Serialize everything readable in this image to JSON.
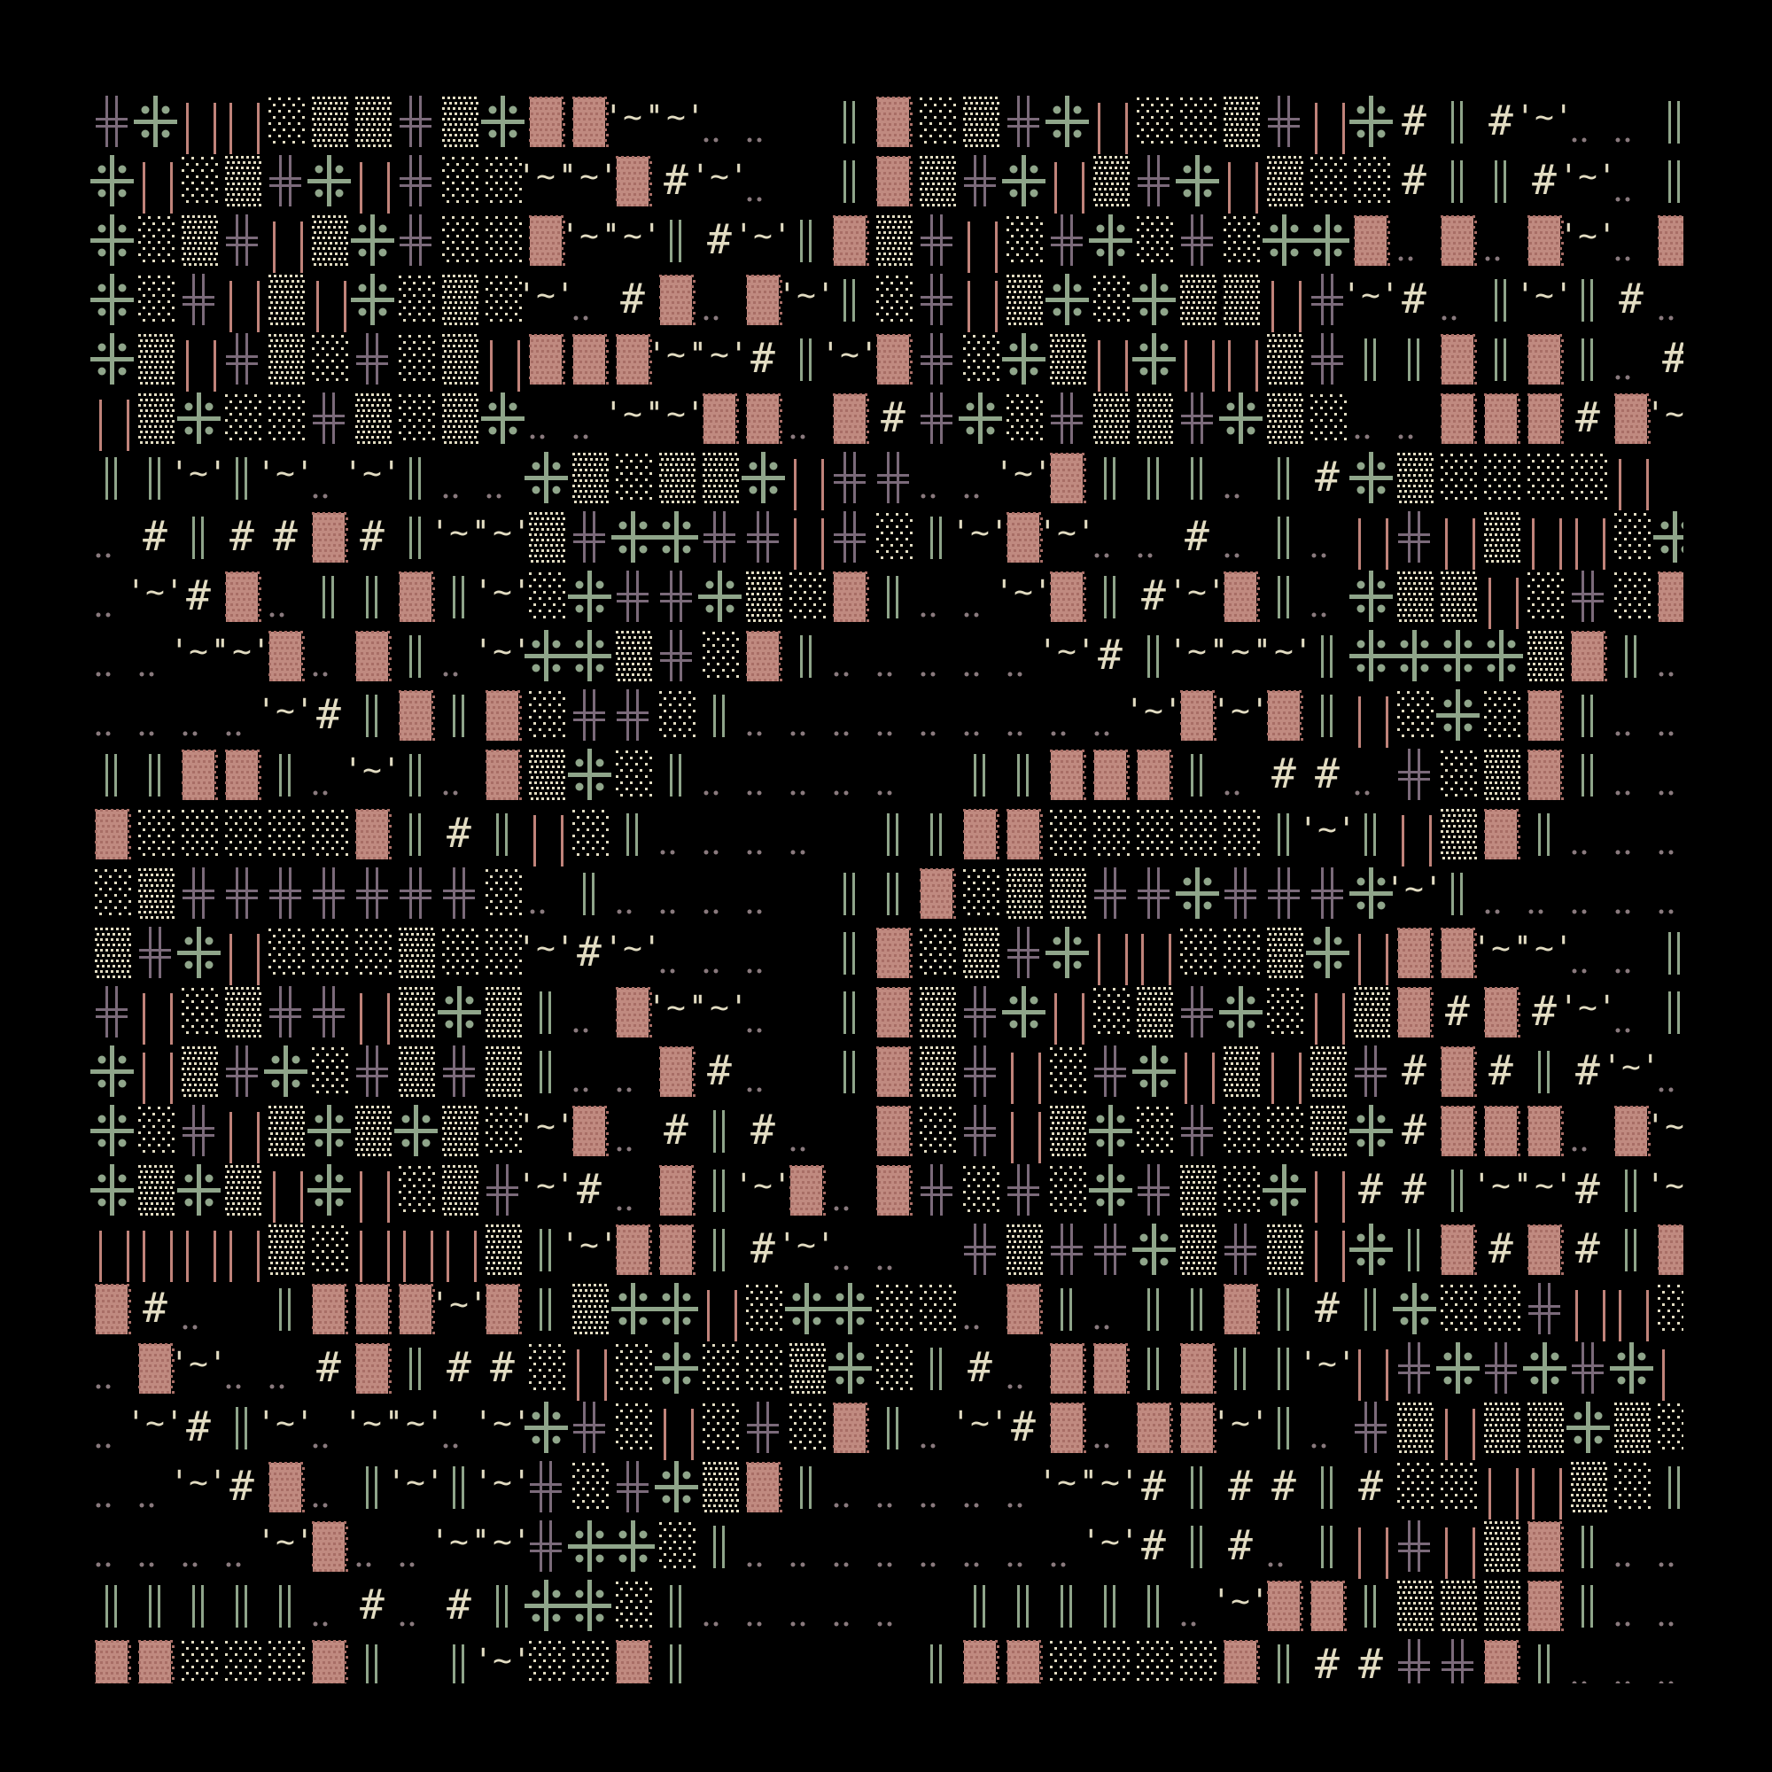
{
  "colors": {
    "background": "#000000",
    "purple_cross": "#7b6a7a",
    "green_cross": "#8fa58a",
    "pink_bars": "#c0837a",
    "pink_block": "#c08a80",
    "cream": "#e2dcc2",
    "dim_dots": "#8a7a7e"
  },
  "glyph_legend": {
    "╬": "double-cross-icon",
    "✣": "dotted-cross-icon",
    "‖": "pink-bars-icon",
    "║": "green-double-bar-icon",
    "░": "sparse-dots-icon",
    "▒": "dense-dots-icon",
    "▓": "pink-block-icon",
    "#": "hash-glyph",
    "~": "tilde-quote-glyph",
    ".": "double-dot-glyph"
  },
  "rows": [
    "╬✣‖‖░▒▒╬▒✣▓▓~~.. ║▓░▒╬✣‖░░▒╬‖✣#║#~..║▓",
    "✣‖░▒╬✣‖╬░░~~▓#~. ║▓▒╬✣‖▒╬✣‖▒░░#║║#~.║▓",
    "✣░▒╬‖▒✣╬░░▓~~║#~║▓▒╬‖░╬✣░╬░✣✣▓.▓.▓~.▓",
    "✣░╬‖▒‖✣░▒░~.#▓.▓~║░╬‖▒✣░✣▒▒‖╬~#.║~║#.",
    "✣▒‖╬▒░╬░▒‖▓▓▓~~#║~▓╬░✣▒‖✣‖‖▒╬║║▓║▓║.#",
    "‖▒✣░░╬▒░▒✣..~~▓▓.▓#╬✣░╬▒▒╬✣▒░..▓▓▓#▓~",
    "║║~║~.~║..✣▒░▒▒✣‖╬╬..~▓║║║.║#✣▒░░░░‖ ",
    ".#║##▓#║~~▒╬✣✣╬╬‖╬░║~▓~..#.║.‖╬‖▒‖‖░✣",
    ".~#▓.║║▓║~░✣╬╬✣▒░▓║..~▓║#~▓║.✣▒▒‖░╬░▓",
    "..~~▓.▓║.~✣✣▒╬░▓║.....~#║~~~║✣✣✣✣▒▓║.",
    "....~#║▓║▓░╬╬░║.........~▓~▓║‖░✣░▓║..",
    "║║▓▓║.~║.▓▒✣░║..... ║║▓▓▓║.##.╬░▒▓║..",
    "▓░░░░░▓║#║‖░║.... ║║▓▓░░░░░║~║‖▒▓║...",
    "░▒╬╬╬╬╬╬╬░.║.... ║║▓░▒▒╬╬✣╬╬╬✣~║..... ",
    "▒╬✣‖░░░▒░░~#~... ║▓░▒╬✣‖‖░░▒✣‖▓▓~~..║▓",
    "╬‖░▒╬╬‖▒✣▒║.▓~~. ║▓▒╬✣‖░▒╬✣░‖▒▓#▓#~.║",
    "✣‖▒╬✣░╬▒╬▒║..▓#. ║▓▒╬‖░╬✣‖▒‖▒╬#▓#║#~.▓",
    "✣░╬‖▒✣▒✣▒░~▓.#║#. ▓░╬‖▒✣░╬░░▒✣#▓▓▓.▓~",
    "✣▒✣▒‖✣‖░▒╬~#.▓║~▓.▓╬░╬░✣╬▒░✣‖##║~~#║~",
    "‖‖‖‖▒░‖‖‖▒║~▓▓║#~.. ╬▒╬╬✣▒╬▒‖✣║▓#▓#║▓",
    "▓#. ║▓▓▓~▓║▒✣✣‖░✣✣░░.▓║.║║▓║#║✣░░╬‖‖░",
    ".▓~..#▓║##░‖░✣░░▒✣░║#.▓▓║▓║║~‖╬✣╬✣╬✣‖",
    ".~#║~.~~.~✣╬░‖░╬░▓║.~#▓.▓▓~║.╬▒‖▒▒✣▒░",
    "..~#▓.║~║~╬░╬✣▒▓║.....~~#║##║#░░‖‖▒░║",
    "....~▓..~~╬✣✣░║........~#║#.║‖╬‖▒▓║..",
    "║║║║║.#.#║✣✣░║..... ║║║║║.~▓▓║▒▒▒▓║..",
    "▓▓░░░▓║ ║~░░▓║     ║▓▓░░░░▓║##╬╬▓║..."
  ]
}
